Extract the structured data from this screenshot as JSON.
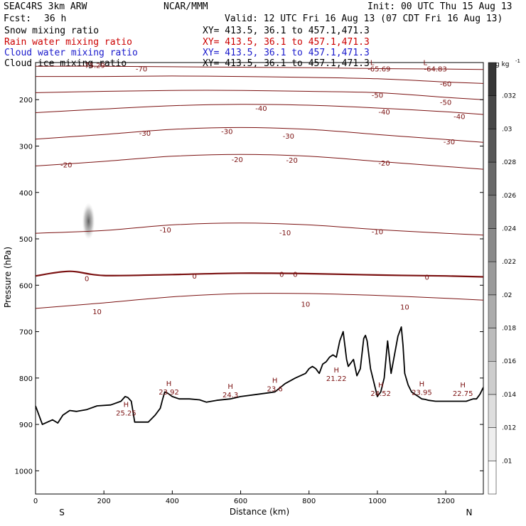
{
  "header": {
    "model": "SEAC4RS  3km ARW",
    "center": "NCAR/MMM",
    "init": "Init: 00 UTC Thu 15 Aug 13",
    "fcst_label": "Fcst:",
    "fcst_value": "36 h",
    "valid": "Valid: 12 UTC Fri 16 Aug 13 (07 CDT Fri 16 Aug 13)"
  },
  "fields": [
    {
      "name": "Snow mixing ratio",
      "xy": "XY= 413.5, 36.1 to 457.1,471.3",
      "color": "#000000"
    },
    {
      "name": "Rain water mixing ratio",
      "xy": "XY= 413.5, 36.1 to 457.1,471.3",
      "color": "#cc0000"
    },
    {
      "name": "Cloud water mixing ratio",
      "xy": "XY= 413.5, 36.1 to 457.1,471.3",
      "color": "#1a1acc"
    },
    {
      "name": "Cloud ice mixing ratio",
      "xy": "XY= 413.5, 36.1 to 457.1,471.3",
      "color": "#000000"
    }
  ],
  "chart_data": {
    "type": "line",
    "xlabel": "Distance (km)",
    "ylabel": "Pressure (hPa)",
    "xlim": [
      0,
      1310
    ],
    "ylim": [
      1050,
      120
    ],
    "x_ticks": [
      0,
      200,
      400,
      600,
      800,
      1000,
      1200
    ],
    "y_ticks": [
      200,
      300,
      400,
      500,
      600,
      700,
      800,
      900,
      1000
    ],
    "x_end_labels": [
      "S",
      "N"
    ],
    "colors": {
      "contour": "#7a1010",
      "terrain": "#000000"
    },
    "contours": [
      {
        "level": -70,
        "x": [
          0,
          200,
          400,
          600,
          800,
          1000,
          1200,
          1310
        ],
        "p": [
          128,
          128,
          129,
          130,
          131,
          133,
          134,
          135
        ]
      },
      {
        "level": -60,
        "x": [
          0,
          200,
          400,
          600,
          800,
          1000,
          1200,
          1310
        ],
        "p": [
          150,
          150,
          149,
          150,
          152,
          155,
          162,
          165
        ]
      },
      {
        "level": -50,
        "x": [
          0,
          200,
          400,
          600,
          800,
          1000,
          1200,
          1310
        ],
        "p": [
          185,
          182,
          180,
          180,
          182,
          185,
          195,
          200
        ]
      },
      {
        "level": -40,
        "x": [
          0,
          200,
          400,
          600,
          800,
          1000,
          1200,
          1310
        ],
        "p": [
          228,
          220,
          213,
          210,
          212,
          218,
          226,
          232
        ]
      },
      {
        "level": -30,
        "x": [
          0,
          200,
          400,
          600,
          800,
          1000,
          1200,
          1310
        ],
        "p": [
          285,
          275,
          264,
          260,
          264,
          275,
          286,
          292
        ]
      },
      {
        "level": -20,
        "x": [
          0,
          200,
          400,
          600,
          800,
          1000,
          1200,
          1310
        ],
        "p": [
          343,
          333,
          322,
          318,
          322,
          333,
          344,
          350
        ]
      },
      {
        "level": -10,
        "x": [
          0,
          200,
          400,
          600,
          800,
          1000,
          1200,
          1310
        ],
        "p": [
          488,
          482,
          470,
          466,
          470,
          480,
          488,
          492
        ]
      },
      {
        "level": 0,
        "x": [
          0,
          100,
          200,
          400,
          600,
          800,
          1000,
          1200,
          1310
        ],
        "p": [
          580,
          570,
          579,
          577,
          574,
          575,
          578,
          580,
          582
        ]
      },
      {
        "level": 10,
        "x": [
          0,
          200,
          400,
          600,
          800,
          1000,
          1200,
          1310
        ],
        "p": [
          650,
          638,
          625,
          618,
          618,
          622,
          628,
          632
        ]
      }
    ],
    "contour_labels": [
      {
        "text": "-75.29",
        "x": 170,
        "p": 125
      },
      {
        "text": "-70",
        "x": 310,
        "p": 133
      },
      {
        "text": "-65.69",
        "x": 1005,
        "p": 133
      },
      {
        "text": "-64.83",
        "x": 1170,
        "p": 133
      },
      {
        "text": "-60",
        "x": 1200,
        "p": 165
      },
      {
        "text": "-50",
        "x": 1000,
        "p": 190
      },
      {
        "text": "-50",
        "x": 1200,
        "p": 205
      },
      {
        "text": "-40",
        "x": 660,
        "p": 218
      },
      {
        "text": "-40",
        "x": 1020,
        "p": 226
      },
      {
        "text": "-40",
        "x": 1240,
        "p": 236
      },
      {
        "text": "-30",
        "x": 320,
        "p": 272
      },
      {
        "text": "-30",
        "x": 560,
        "p": 268
      },
      {
        "text": "-30",
        "x": 740,
        "p": 278
      },
      {
        "text": "-30",
        "x": 1210,
        "p": 290
      },
      {
        "text": "-20",
        "x": 90,
        "p": 340
      },
      {
        "text": "-20",
        "x": 590,
        "p": 328
      },
      {
        "text": "-20",
        "x": 750,
        "p": 330
      },
      {
        "text": "-20",
        "x": 1020,
        "p": 336
      },
      {
        "text": "-10",
        "x": 380,
        "p": 480
      },
      {
        "text": "-10",
        "x": 730,
        "p": 486
      },
      {
        "text": "-10",
        "x": 1000,
        "p": 484
      },
      {
        "text": "0",
        "x": 150,
        "p": 585
      },
      {
        "text": "0",
        "x": 465,
        "p": 580
      },
      {
        "text": "0",
        "x": 720,
        "p": 576
      },
      {
        "text": "0",
        "x": 760,
        "p": 576
      },
      {
        "text": "0",
        "x": 1145,
        "p": 582
      },
      {
        "text": "10",
        "x": 180,
        "p": 656
      },
      {
        "text": "10",
        "x": 790,
        "p": 640
      },
      {
        "text": "10",
        "x": 1080,
        "p": 646
      }
    ],
    "extrema": [
      {
        "mark": "H",
        "value": "25.25",
        "x": 265,
        "p": 862
      },
      {
        "mark": "H",
        "value": "23.92",
        "x": 390,
        "p": 817
      },
      {
        "mark": "H",
        "value": "24.3",
        "x": 570,
        "p": 823
      },
      {
        "mark": "H",
        "value": "23.6",
        "x": 700,
        "p": 810
      },
      {
        "mark": "H",
        "value": "21.22",
        "x": 880,
        "p": 788
      },
      {
        "mark": "H",
        "value": "24.52",
        "x": 1010,
        "p": 820
      },
      {
        "mark": "H",
        "value": "23.95",
        "x": 1130,
        "p": 818
      },
      {
        "mark": "H",
        "value": "22.75",
        "x": 1250,
        "p": 820
      },
      {
        "mark": "L",
        "value": "",
        "x": 985,
        "p": 125
      },
      {
        "mark": "L",
        "value": "",
        "x": 1140,
        "p": 125
      }
    ],
    "terrain": {
      "x": [
        0,
        20,
        35,
        50,
        65,
        80,
        100,
        120,
        150,
        180,
        220,
        250,
        262,
        270,
        280,
        290,
        300,
        330,
        350,
        365,
        372,
        378,
        385,
        400,
        420,
        450,
        480,
        500,
        530,
        570,
        600,
        650,
        700,
        730,
        760,
        790,
        800,
        810,
        820,
        830,
        840,
        850,
        860,
        870,
        880,
        890,
        900,
        910,
        915,
        920,
        930,
        940,
        950,
        960,
        965,
        970,
        980,
        990,
        1000,
        1010,
        1020,
        1030,
        1040,
        1050,
        1060,
        1070,
        1075,
        1080,
        1090,
        1100,
        1110,
        1120,
        1130,
        1140,
        1150,
        1170,
        1200,
        1230,
        1260,
        1280,
        1290,
        1300,
        1310
      ],
      "p": [
        860,
        900,
        895,
        890,
        897,
        880,
        870,
        872,
        868,
        860,
        858,
        850,
        840,
        842,
        850,
        895,
        895,
        895,
        880,
        865,
        845,
        830,
        832,
        840,
        845,
        845,
        847,
        852,
        848,
        845,
        840,
        835,
        830,
        812,
        800,
        790,
        780,
        775,
        780,
        790,
        770,
        765,
        755,
        750,
        755,
        720,
        700,
        760,
        775,
        770,
        760,
        795,
        780,
        715,
        708,
        720,
        780,
        810,
        840,
        830,
        800,
        720,
        790,
        750,
        710,
        690,
        730,
        790,
        815,
        830,
        835,
        840,
        845,
        846,
        848,
        850,
        850,
        850,
        850,
        845,
        845,
        835,
        820
      ]
    },
    "cloud_shading": {
      "x": 155,
      "p_top": 440,
      "p_center": 462,
      "p_bottom": 495
    },
    "colorbar": {
      "unit": "g kg",
      "unit_exponent": "-1",
      "levels": [
        0.01,
        0.012,
        0.014,
        0.016,
        0.018,
        0.02,
        0.022,
        0.024,
        0.026,
        0.028,
        0.03,
        0.032
      ],
      "labels": [
        ".01",
        ".012",
        ".014",
        ".016",
        ".018",
        ".02",
        ".022",
        ".024",
        ".026",
        ".028",
        ".03",
        ".032"
      ]
    }
  }
}
